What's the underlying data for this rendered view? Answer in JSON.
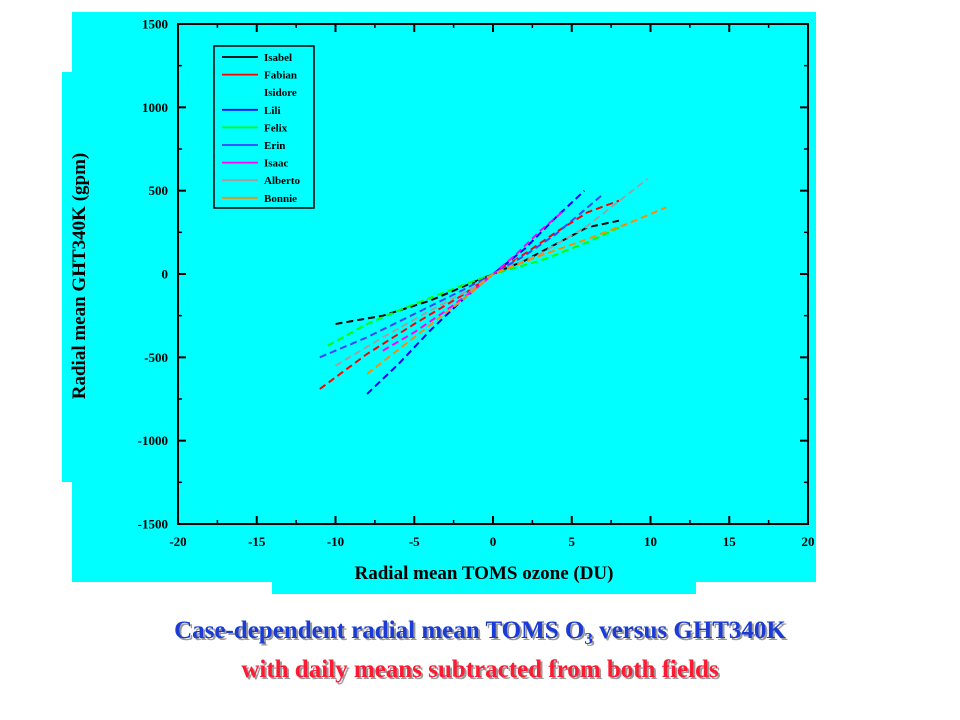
{
  "chart_data": {
    "type": "line",
    "title": "",
    "xlabel": "Radial mean TOMS ozone (DU)",
    "ylabel": "Radial mean GHT340K (gpm)",
    "xlim": [
      -20,
      20
    ],
    "ylim": [
      -1500,
      1500
    ],
    "x_ticks": [
      "-20",
      "-15",
      "-10",
      "-5",
      "0",
      "5",
      "10",
      "15",
      "20"
    ],
    "y_ticks": [
      "1500",
      "1000",
      "500",
      "0",
      "-500",
      "-1000",
      "-1500"
    ],
    "grid": false,
    "legend_position": "top-left",
    "line_style": "dashed",
    "series": [
      {
        "name": "Isabel",
        "color": "#000000",
        "x": [
          -10,
          -7,
          -4,
          -2,
          0,
          2,
          4,
          6,
          8
        ],
        "y": [
          -300,
          -250,
          -160,
          -80,
          0,
          80,
          180,
          280,
          320
        ]
      },
      {
        "name": "Fabian",
        "color": "#ff0000",
        "x": [
          -11,
          -8,
          -5,
          -2,
          0,
          2,
          4,
          6,
          8
        ],
        "y": [
          -690,
          -480,
          -300,
          -130,
          0,
          120,
          250,
          370,
          440
        ]
      },
      {
        "name": "Isidore",
        "color": "#00ffff",
        "x": [
          -8,
          -5,
          -2,
          0,
          2,
          5,
          8
        ],
        "y": [
          -350,
          -230,
          -100,
          0,
          110,
          240,
          370
        ]
      },
      {
        "name": "Lili",
        "color": "#0000ff",
        "x": [
          -8,
          -6,
          -4,
          -2,
          0,
          2,
          4,
          5.8
        ],
        "y": [
          -720,
          -540,
          -340,
          -160,
          0,
          150,
          340,
          500
        ]
      },
      {
        "name": "Felix",
        "color": "#00ff00",
        "x": [
          -10.5,
          -8,
          -5,
          -2,
          0,
          3,
          6,
          8.5
        ],
        "y": [
          -430,
          -300,
          -180,
          -70,
          0,
          80,
          190,
          300
        ]
      },
      {
        "name": "Erin",
        "color": "#4040ff",
        "x": [
          -11,
          -8,
          -5,
          -2,
          0,
          2,
          4,
          7
        ],
        "y": [
          -500,
          -380,
          -240,
          -100,
          0,
          110,
          240,
          480
        ]
      },
      {
        "name": "Isaac",
        "color": "#ff00ff",
        "x": [
          -7,
          -5,
          -3,
          -1,
          0,
          1.5,
          3,
          4.5
        ],
        "y": [
          -460,
          -350,
          -220,
          -80,
          0,
          120,
          260,
          380
        ]
      },
      {
        "name": "Alberto",
        "color": "#a0a0a0",
        "x": [
          -10,
          -7,
          -4,
          -1,
          0,
          3,
          6,
          9.8
        ],
        "y": [
          -550,
          -380,
          -220,
          -70,
          0,
          120,
          290,
          570
        ]
      },
      {
        "name": "Bonnie",
        "color": "#ff8c00",
        "x": [
          -8,
          -5,
          -2,
          0,
          3,
          6,
          9,
          11
        ],
        "y": [
          -600,
          -380,
          -160,
          0,
          110,
          210,
          320,
          400
        ]
      }
    ]
  },
  "caption": {
    "line1_prefix": "Case-dependent radial mean TOMS O",
    "line1_sub": "3",
    "line1_suffix": " versus GHT340K",
    "line2": "with daily means subtracted from both fields"
  }
}
